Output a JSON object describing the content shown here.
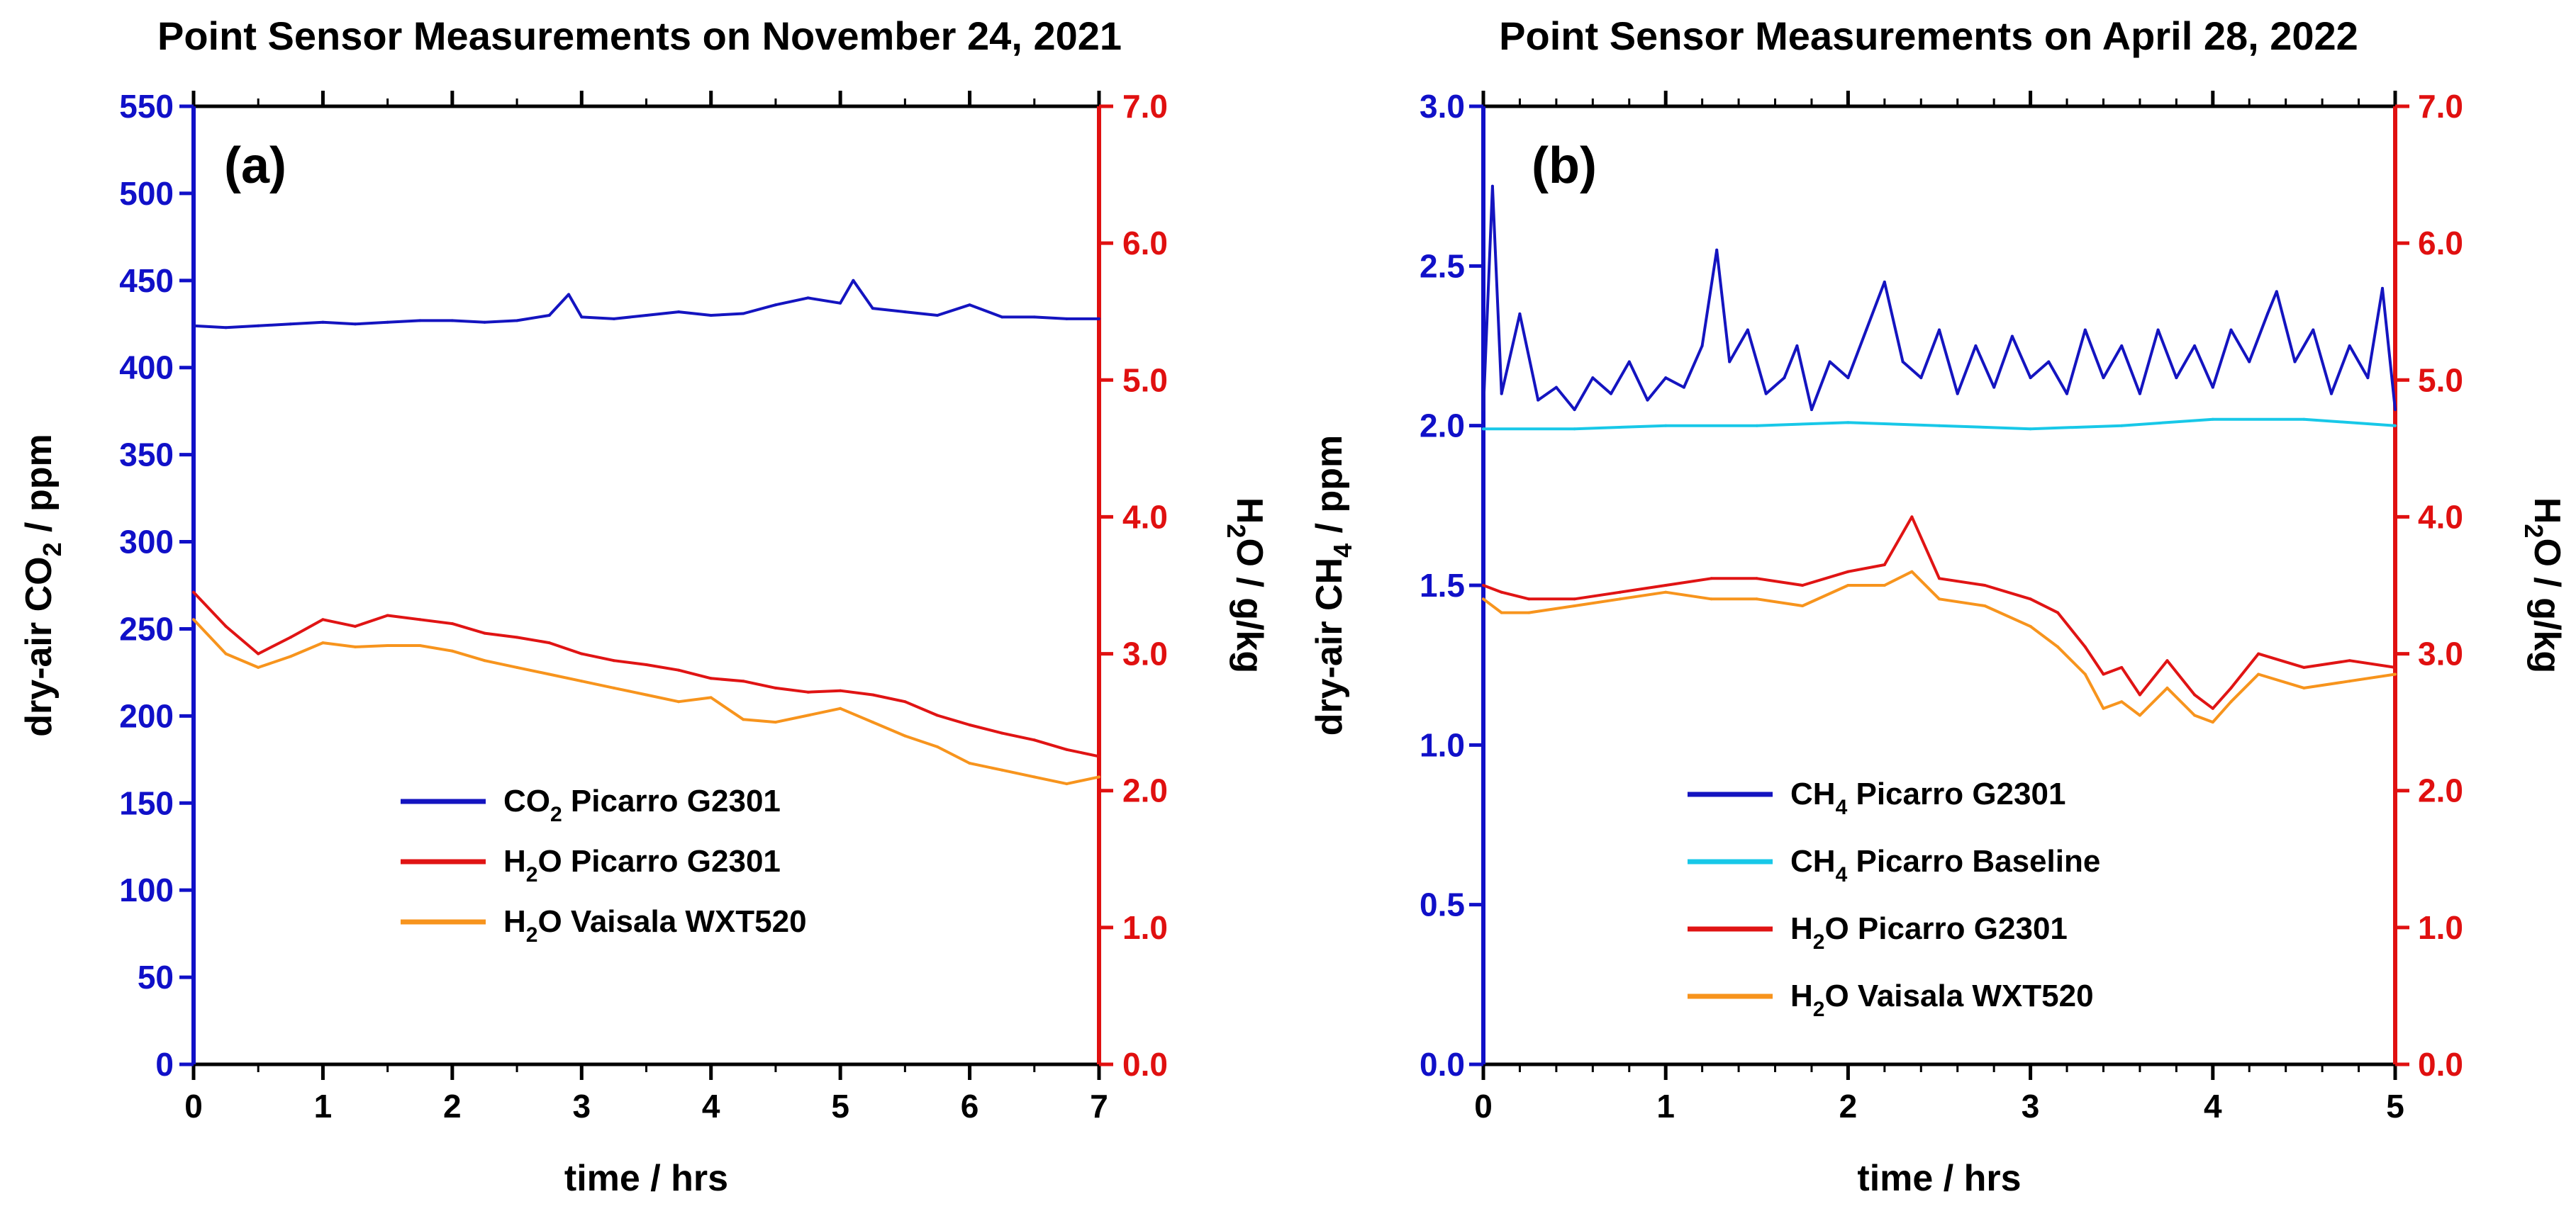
{
  "colors": {
    "left_axis": "#1010c8",
    "right_axis": "#e01010",
    "co2": "#1414c0",
    "ch4": "#1414c0",
    "baseline": "#18c8e8",
    "h2o_picarro": "#e01414",
    "h2o_vaisala": "#f7941d"
  },
  "chart_data": [
    {
      "type": "line",
      "title": "Point Sensor Measurements on November 24, 2021",
      "panel_label": "(a)",
      "xlabel": "time / hrs",
      "ylabel_left": {
        "prefix": "dry-air CO",
        "sub": "2",
        "suffix": " / ppm"
      },
      "ylabel_right": {
        "prefix": "H",
        "sub": "2",
        "suffix": "O / g/kg"
      },
      "xlim": [
        0,
        7
      ],
      "ylim_left": [
        0,
        550
      ],
      "ylim_right": [
        0,
        7.0
      ],
      "x_ticks": [
        "0",
        "1",
        "2",
        "3",
        "4",
        "5",
        "6",
        "7"
      ],
      "y_left_ticks": [
        "0",
        "50",
        "100",
        "150",
        "200",
        "250",
        "300",
        "350",
        "400",
        "450",
        "500",
        "550"
      ],
      "y_right_ticks": [
        "0.0",
        "1.0",
        "2.0",
        "3.0",
        "4.0",
        "5.0",
        "6.0",
        "7.0"
      ],
      "series": [
        {
          "name": "CO2 Picarro G2301",
          "legend": {
            "pre": "CO",
            "sub": "2",
            "post": " Picarro G2301"
          },
          "axis": "left",
          "color_key": "co2",
          "x": [
            0,
            0.25,
            0.5,
            0.75,
            1.0,
            1.25,
            1.5,
            1.75,
            2.0,
            2.25,
            2.5,
            2.75,
            2.9,
            3.0,
            3.25,
            3.5,
            3.75,
            4.0,
            4.25,
            4.5,
            4.75,
            5.0,
            5.1,
            5.25,
            5.5,
            5.75,
            6.0,
            6.25,
            6.5,
            6.75,
            7.0
          ],
          "values": [
            424,
            423,
            424,
            425,
            426,
            425,
            426,
            427,
            427,
            426,
            427,
            430,
            442,
            429,
            428,
            430,
            432,
            430,
            431,
            436,
            440,
            437,
            450,
            434,
            432,
            430,
            436,
            429,
            429,
            428,
            428
          ]
        },
        {
          "name": "H2O Picarro G2301",
          "legend": {
            "pre": "H",
            "sub": "2",
            "post": "O Picarro G2301"
          },
          "axis": "right",
          "color_key": "h2o_picarro",
          "x": [
            0,
            0.25,
            0.5,
            0.75,
            1.0,
            1.25,
            1.5,
            1.75,
            2.0,
            2.25,
            2.5,
            2.75,
            3.0,
            3.25,
            3.5,
            3.75,
            4.0,
            4.25,
            4.5,
            4.75,
            5.0,
            5.25,
            5.5,
            5.75,
            6.0,
            6.25,
            6.5,
            6.75,
            7.0
          ],
          "values": [
            3.45,
            3.2,
            3.0,
            3.12,
            3.25,
            3.2,
            3.28,
            3.25,
            3.22,
            3.15,
            3.12,
            3.08,
            3.0,
            2.95,
            2.92,
            2.88,
            2.82,
            2.8,
            2.75,
            2.72,
            2.73,
            2.7,
            2.65,
            2.55,
            2.48,
            2.42,
            2.37,
            2.3,
            2.25
          ]
        },
        {
          "name": "H2O Vaisala WXT520",
          "legend": {
            "pre": "H",
            "sub": "2",
            "post": "O Vaisala WXT520"
          },
          "axis": "right",
          "color_key": "h2o_vaisala",
          "x": [
            0,
            0.25,
            0.5,
            0.75,
            1.0,
            1.25,
            1.5,
            1.75,
            2.0,
            2.25,
            2.5,
            2.75,
            3.0,
            3.25,
            3.5,
            3.75,
            4.0,
            4.25,
            4.5,
            4.75,
            5.0,
            5.25,
            5.5,
            5.75,
            6.0,
            6.25,
            6.5,
            6.75,
            7.0
          ],
          "values": [
            3.25,
            3.0,
            2.9,
            2.98,
            3.08,
            3.05,
            3.06,
            3.06,
            3.02,
            2.95,
            2.9,
            2.85,
            2.8,
            2.75,
            2.7,
            2.65,
            2.68,
            2.52,
            2.5,
            2.55,
            2.6,
            2.5,
            2.4,
            2.32,
            2.2,
            2.15,
            2.1,
            2.05,
            2.1
          ]
        }
      ]
    },
    {
      "type": "line",
      "title": "Point Sensor Measurements on April 28, 2022",
      "panel_label": "(b)",
      "xlabel": "time / hrs",
      "ylabel_left": {
        "prefix": "dry-air CH",
        "sub": "4",
        "suffix": " / ppm"
      },
      "ylabel_right": {
        "prefix": "H",
        "sub": "2",
        "suffix": "O / g/kg"
      },
      "xlim": [
        0,
        5
      ],
      "ylim_left": [
        0,
        3.0
      ],
      "ylim_right": [
        0,
        7.0
      ],
      "x_ticks": [
        "0",
        "1",
        "2",
        "3",
        "4",
        "5"
      ],
      "y_left_ticks": [
        "0.0",
        "0.5",
        "1.0",
        "1.5",
        "2.0",
        "2.5",
        "3.0"
      ],
      "y_right_ticks": [
        "0.0",
        "1.0",
        "2.0",
        "3.0",
        "4.0",
        "5.0",
        "6.0",
        "7.0"
      ],
      "series": [
        {
          "name": "CH4 Picarro G2301",
          "legend": {
            "pre": "CH",
            "sub": "4",
            "post": " Picarro G2301"
          },
          "axis": "left",
          "color_key": "ch4",
          "x": [
            0,
            0.05,
            0.1,
            0.2,
            0.3,
            0.4,
            0.5,
            0.6,
            0.7,
            0.8,
            0.9,
            1.0,
            1.1,
            1.2,
            1.28,
            1.35,
            1.45,
            1.55,
            1.65,
            1.72,
            1.8,
            1.9,
            2.0,
            2.1,
            2.2,
            2.3,
            2.4,
            2.5,
            2.6,
            2.7,
            2.8,
            2.9,
            3.0,
            3.1,
            3.2,
            3.3,
            3.4,
            3.5,
            3.6,
            3.7,
            3.8,
            3.9,
            4.0,
            4.1,
            4.2,
            4.3,
            4.35,
            4.45,
            4.55,
            4.65,
            4.75,
            4.85,
            4.93,
            5.0
          ],
          "values": [
            2.05,
            2.75,
            2.1,
            2.35,
            2.08,
            2.12,
            2.05,
            2.15,
            2.1,
            2.2,
            2.08,
            2.15,
            2.12,
            2.25,
            2.55,
            2.2,
            2.3,
            2.1,
            2.15,
            2.25,
            2.05,
            2.2,
            2.15,
            2.3,
            2.45,
            2.2,
            2.15,
            2.3,
            2.1,
            2.25,
            2.12,
            2.28,
            2.15,
            2.2,
            2.1,
            2.3,
            2.15,
            2.25,
            2.1,
            2.3,
            2.15,
            2.25,
            2.12,
            2.3,
            2.2,
            2.35,
            2.42,
            2.2,
            2.3,
            2.1,
            2.25,
            2.15,
            2.43,
            2.05
          ]
        },
        {
          "name": "CH4 Picarro Baseline",
          "legend": {
            "pre": "CH",
            "sub": "4",
            "post": " Picarro Baseline"
          },
          "axis": "left",
          "color_key": "baseline",
          "x": [
            0,
            0.5,
            1.0,
            1.5,
            2.0,
            2.5,
            3.0,
            3.5,
            4.0,
            4.5,
            5.0
          ],
          "values": [
            1.99,
            1.99,
            2.0,
            2.0,
            2.01,
            2.0,
            1.99,
            2.0,
            2.02,
            2.02,
            2.0
          ]
        },
        {
          "name": "H2O Picarro G2301",
          "legend": {
            "pre": "H",
            "sub": "2",
            "post": "O Picarro G2301"
          },
          "axis": "right",
          "color_key": "h2o_picarro",
          "x": [
            0,
            0.1,
            0.25,
            0.5,
            0.75,
            1.0,
            1.25,
            1.5,
            1.75,
            2.0,
            2.2,
            2.35,
            2.5,
            2.75,
            3.0,
            3.15,
            3.3,
            3.4,
            3.5,
            3.6,
            3.75,
            3.9,
            4.0,
            4.1,
            4.25,
            4.5,
            4.75,
            5.0
          ],
          "values": [
            3.5,
            3.45,
            3.4,
            3.4,
            3.45,
            3.5,
            3.55,
            3.55,
            3.5,
            3.6,
            3.65,
            4.0,
            3.55,
            3.5,
            3.4,
            3.3,
            3.05,
            2.85,
            2.9,
            2.7,
            2.95,
            2.7,
            2.6,
            2.75,
            3.0,
            2.9,
            2.95,
            2.9
          ]
        },
        {
          "name": "H2O Vaisala WXT520",
          "legend": {
            "pre": "H",
            "sub": "2",
            "post": "O Vaisala WXT520"
          },
          "axis": "right",
          "color_key": "h2o_vaisala",
          "x": [
            0,
            0.1,
            0.25,
            0.5,
            0.75,
            1.0,
            1.25,
            1.5,
            1.75,
            2.0,
            2.2,
            2.35,
            2.5,
            2.75,
            3.0,
            3.15,
            3.3,
            3.4,
            3.5,
            3.6,
            3.75,
            3.9,
            4.0,
            4.1,
            4.25,
            4.5,
            4.75,
            5.0
          ],
          "values": [
            3.4,
            3.3,
            3.3,
            3.35,
            3.4,
            3.45,
            3.4,
            3.4,
            3.35,
            3.5,
            3.5,
            3.6,
            3.4,
            3.35,
            3.2,
            3.05,
            2.85,
            2.6,
            2.65,
            2.55,
            2.75,
            2.55,
            2.5,
            2.65,
            2.85,
            2.75,
            2.8,
            2.85
          ]
        }
      ]
    }
  ]
}
